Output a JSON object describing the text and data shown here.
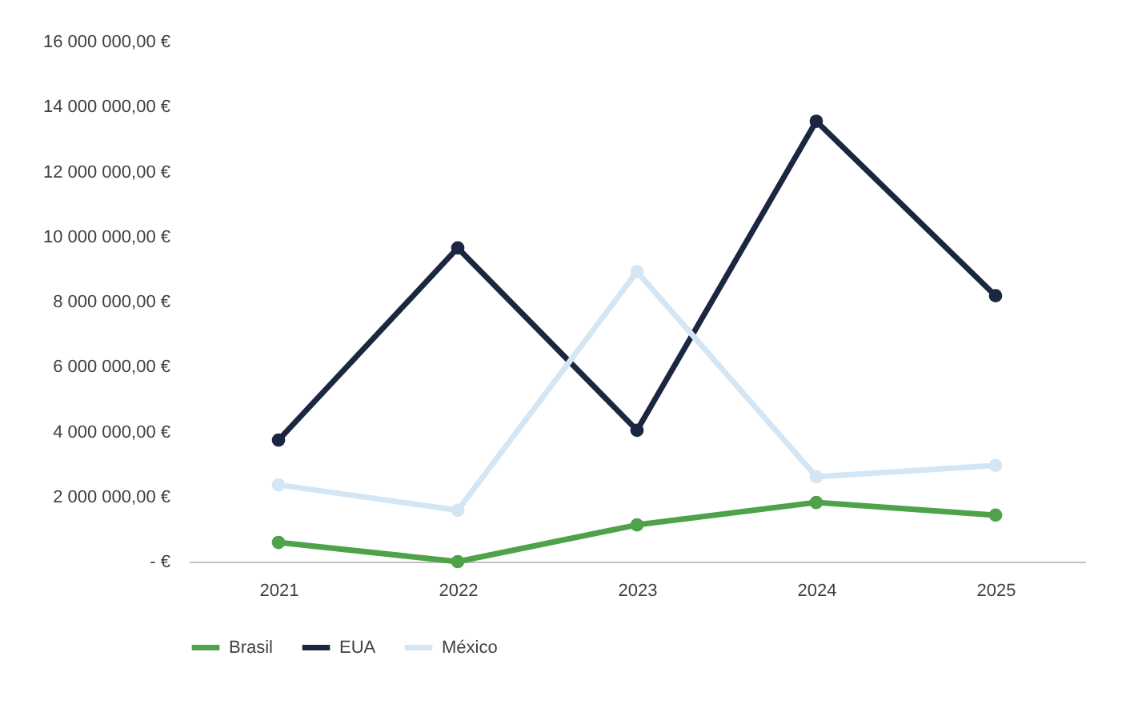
{
  "chart_data": {
    "type": "line",
    "categories": [
      "2021",
      "2022",
      "2023",
      "2024",
      "2025"
    ],
    "series": [
      {
        "name": "Brasil",
        "color": "#4ea24a",
        "values": [
          590000,
          0,
          1130000,
          1820000,
          1430000
        ]
      },
      {
        "name": "EUA",
        "color": "#1b2640",
        "values": [
          3740000,
          9650000,
          4040000,
          13550000,
          8180000
        ]
      },
      {
        "name": "México",
        "color": "#d4e6f3",
        "values": [
          2360000,
          1580000,
          8920000,
          2610000,
          2960000
        ]
      }
    ],
    "ylim": [
      0,
      16000000
    ],
    "yticks": [
      {
        "value": 0,
        "label": "-  €"
      },
      {
        "value": 2000000,
        "label": "2 000 000,00 €"
      },
      {
        "value": 4000000,
        "label": "4 000 000,00 €"
      },
      {
        "value": 6000000,
        "label": "6 000 000,00 €"
      },
      {
        "value": 8000000,
        "label": "8 000 000,00 €"
      },
      {
        "value": 10000000,
        "label": "10 000 000,00 €"
      },
      {
        "value": 12000000,
        "label": "12 000 000,00 €"
      },
      {
        "value": 14000000,
        "label": "14 000 000,00 €"
      },
      {
        "value": 16000000,
        "label": "16 000 000,00 €"
      }
    ],
    "grid": false,
    "legend": "bottom",
    "marker": "circle",
    "line_style": "solid"
  }
}
